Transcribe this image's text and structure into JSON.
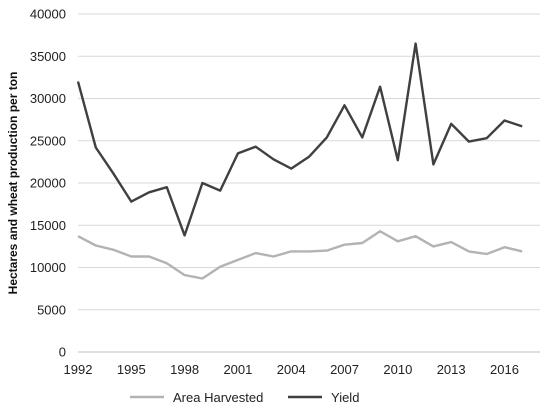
{
  "chart_data": {
    "type": "line",
    "title": "",
    "xlabel": "",
    "ylabel": "Hectares and wheat production per ton",
    "x": [
      1992,
      1993,
      1994,
      1995,
      1996,
      1997,
      1998,
      1999,
      2000,
      2001,
      2002,
      2003,
      2004,
      2005,
      2006,
      2007,
      2008,
      2009,
      2010,
      2011,
      2012,
      2013,
      2014,
      2015,
      2016,
      2017
    ],
    "x_ticks": [
      "1992",
      "1995",
      "1998",
      "2001",
      "2004",
      "2007",
      "2010",
      "2013",
      "2016"
    ],
    "y_ticks": [
      "0",
      "5000",
      "10000",
      "15000",
      "20000",
      "25000",
      "30000",
      "35000",
      "40000"
    ],
    "ylim": [
      0,
      40000
    ],
    "grid": "horizontal",
    "legend_position": "bottom",
    "series": [
      {
        "name": "Area Harvested",
        "color": "#b3b3b3",
        "values": [
          13700,
          12600,
          12100,
          11300,
          11300,
          10500,
          9100,
          8700,
          10100,
          10900,
          11700,
          11300,
          11900,
          11900,
          12000,
          12700,
          12900,
          14300,
          13100,
          13700,
          12500,
          13000,
          11900,
          11600,
          12400,
          11900
        ]
      },
      {
        "name": "Yield",
        "color": "#404040",
        "values": [
          32000,
          24200,
          21100,
          17800,
          18900,
          19500,
          13800,
          20000,
          19100,
          23500,
          24300,
          22800,
          21700,
          23100,
          25400,
          29200,
          25400,
          31400,
          22700,
          36500,
          22200,
          27000,
          24900,
          25300,
          27400,
          26700
        ]
      }
    ]
  }
}
